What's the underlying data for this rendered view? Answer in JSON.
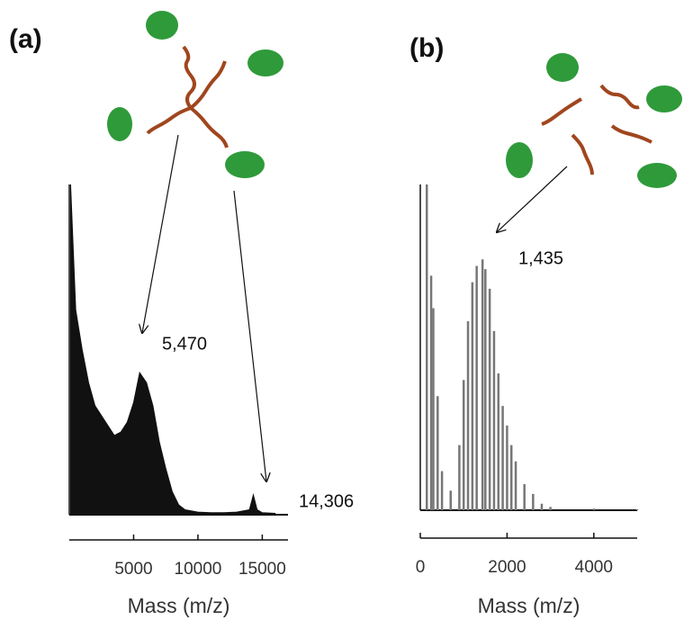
{
  "chart_data": [
    {
      "type": "area",
      "panel": "(a)",
      "x_label": "Mass (m/z)",
      "color": "#111111",
      "xlim": [
        0,
        17000
      ],
      "xticks": [
        5000,
        10000,
        15000
      ],
      "ylim": [
        0,
        100
      ],
      "x": [
        100,
        500,
        1000,
        1500,
        2000,
        2500,
        3000,
        3500,
        4000,
        4500,
        5000,
        5470,
        6000,
        6500,
        7000,
        7500,
        8000,
        8500,
        9000,
        10000,
        11000,
        12000,
        13000,
        14000,
        14306,
        14600,
        15000,
        16000
      ],
      "values": [
        100,
        62,
        50,
        40,
        33,
        30,
        27,
        24,
        25,
        28,
        34,
        43,
        40,
        33,
        22,
        14,
        7,
        3,
        1.5,
        0.8,
        0.6,
        0.6,
        0.8,
        1.5,
        6,
        1.5,
        0.6,
        0.4
      ],
      "annotations": [
        "5,470",
        "14,306"
      ]
    },
    {
      "type": "stem",
      "panel": "(b)",
      "x_label": "Mass (m/z)",
      "color": "#777777",
      "xlim": [
        0,
        5000
      ],
      "xticks": [
        0,
        2000,
        4000
      ],
      "ylim": [
        0,
        100
      ],
      "x": [
        150,
        250,
        300,
        400,
        500,
        700,
        900,
        1000,
        1100,
        1200,
        1300,
        1435,
        1500,
        1600,
        1700,
        1800,
        1900,
        2000,
        2100,
        2200,
        2400,
        2600,
        2800,
        3000,
        4000,
        5000
      ],
      "values": [
        100,
        72,
        62,
        35,
        12,
        6,
        20,
        40,
        58,
        70,
        75,
        77,
        74,
        68,
        55,
        42,
        32,
        26,
        20,
        15,
        8,
        5,
        2,
        1,
        0.5,
        0.3
      ],
      "annotations": [
        "1,435"
      ]
    }
  ]
}
